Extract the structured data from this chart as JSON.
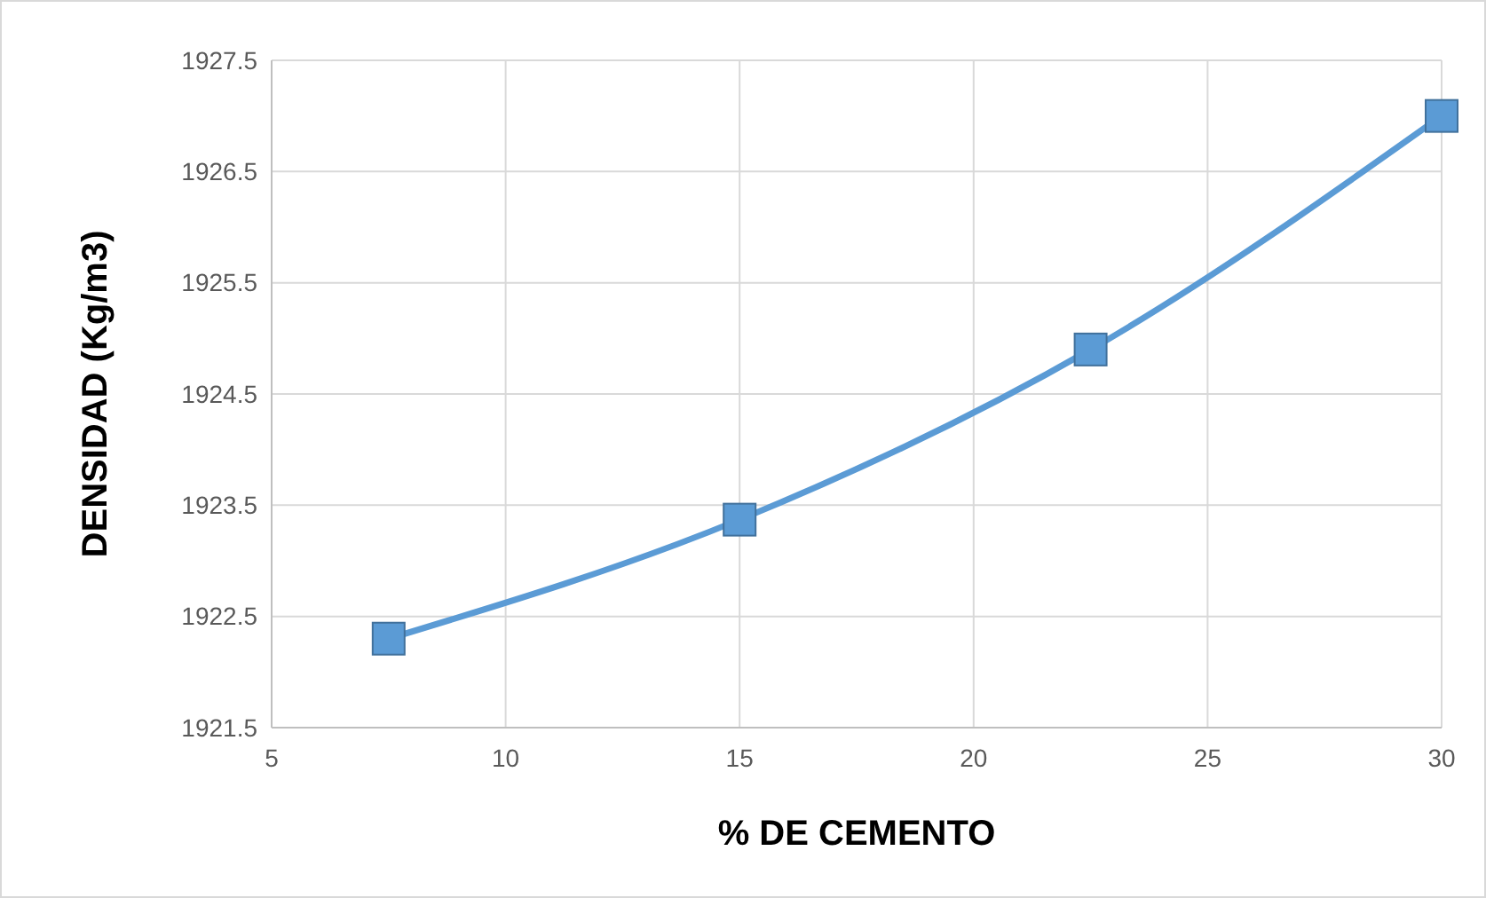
{
  "chart_data": {
    "type": "line",
    "xlabel": "% DE CEMENTO",
    "ylabel": "DENSIDAD (Kg/m3)",
    "x": [
      7.5,
      15,
      22.5,
      30
    ],
    "series": [
      {
        "color": "#5b9bd5",
        "values": [
          1922.3,
          1923.37,
          1924.9,
          1927.0
        ]
      }
    ],
    "xlim": [
      5,
      30
    ],
    "xticks": [
      5,
      10,
      15,
      20,
      25,
      30
    ],
    "ylim": [
      1921.5,
      1927.5
    ],
    "yticks": [
      {
        "value": 1921.5,
        "label": "1921.5"
      },
      {
        "value": 1922.5,
        "label": "1922.5"
      },
      {
        "value": 1923.5,
        "label": "1923.5"
      },
      {
        "value": 1924.5,
        "label": "1924.5"
      },
      {
        "value": 1925.5,
        "label": "1925.5"
      },
      {
        "value": 1926.5,
        "label": "1926.5"
      },
      {
        "value": 1927.5,
        "label": "1927.5"
      }
    ],
    "grid": true,
    "marker": "square",
    "line_style": "solid"
  }
}
